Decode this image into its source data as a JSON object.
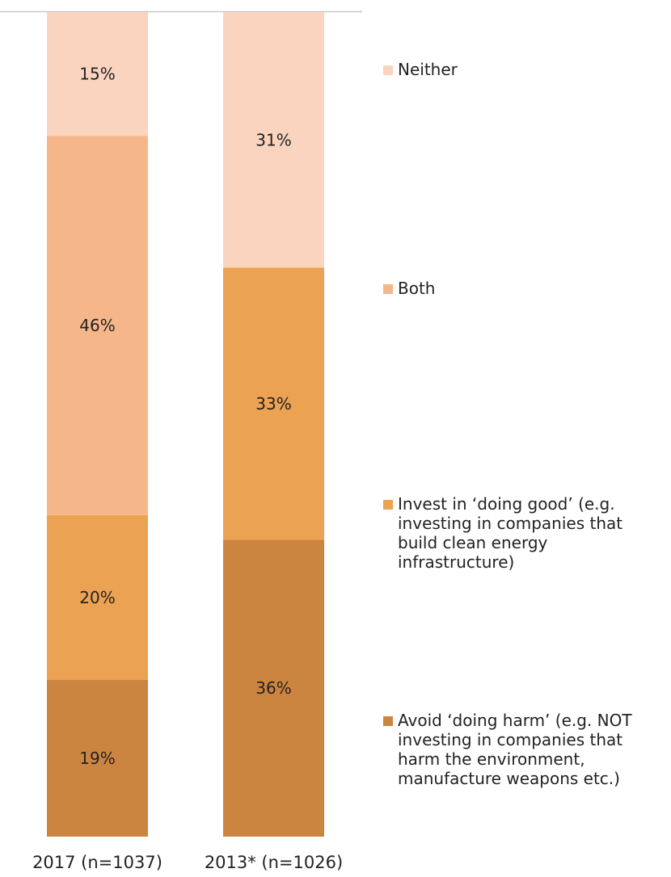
{
  "chart_data": {
    "type": "bar",
    "stacked": true,
    "categories": [
      "2017 (n=1037)",
      "2013* (n=1026)"
    ],
    "series": [
      {
        "name": "Avoid ‘doing harm’ (e.g. NOT investing in companies that harm the environment, manufacture weapons etc.)",
        "values": [
          19,
          36
        ],
        "color": "#cc8540"
      },
      {
        "name": "Invest in ‘doing good’ (e.g. investing in companies that build clean energy infrastructure)",
        "values": [
          20,
          33
        ],
        "color": "#eca253"
      },
      {
        "name": "Both",
        "values": [
          46,
          0
        ],
        "color": "#f5b78a"
      },
      {
        "name": "Neither",
        "values": [
          15,
          31
        ],
        "color": "#fbd4c0"
      }
    ],
    "value_labels": [
      [
        "19%",
        "36%"
      ],
      [
        "20%",
        "33%"
      ],
      [
        "46%",
        ""
      ],
      [
        "15%",
        "31%"
      ]
    ],
    "ylim": [
      0,
      100
    ],
    "legend_position": "right",
    "grid": false
  },
  "legend": {
    "items": [
      {
        "label": "Neither",
        "color": "#fbd4c0"
      },
      {
        "label": "Both",
        "color": "#f5b78a"
      },
      {
        "label": "Invest in ‘doing good’ (e.g. investing in companies that build clean energy infrastructure)",
        "color": "#eca253"
      },
      {
        "label": "Avoid ‘doing harm’ (e.g. NOT investing in companies that harm the environment, manufacture weapons etc.)",
        "color": "#cc8540"
      }
    ]
  }
}
